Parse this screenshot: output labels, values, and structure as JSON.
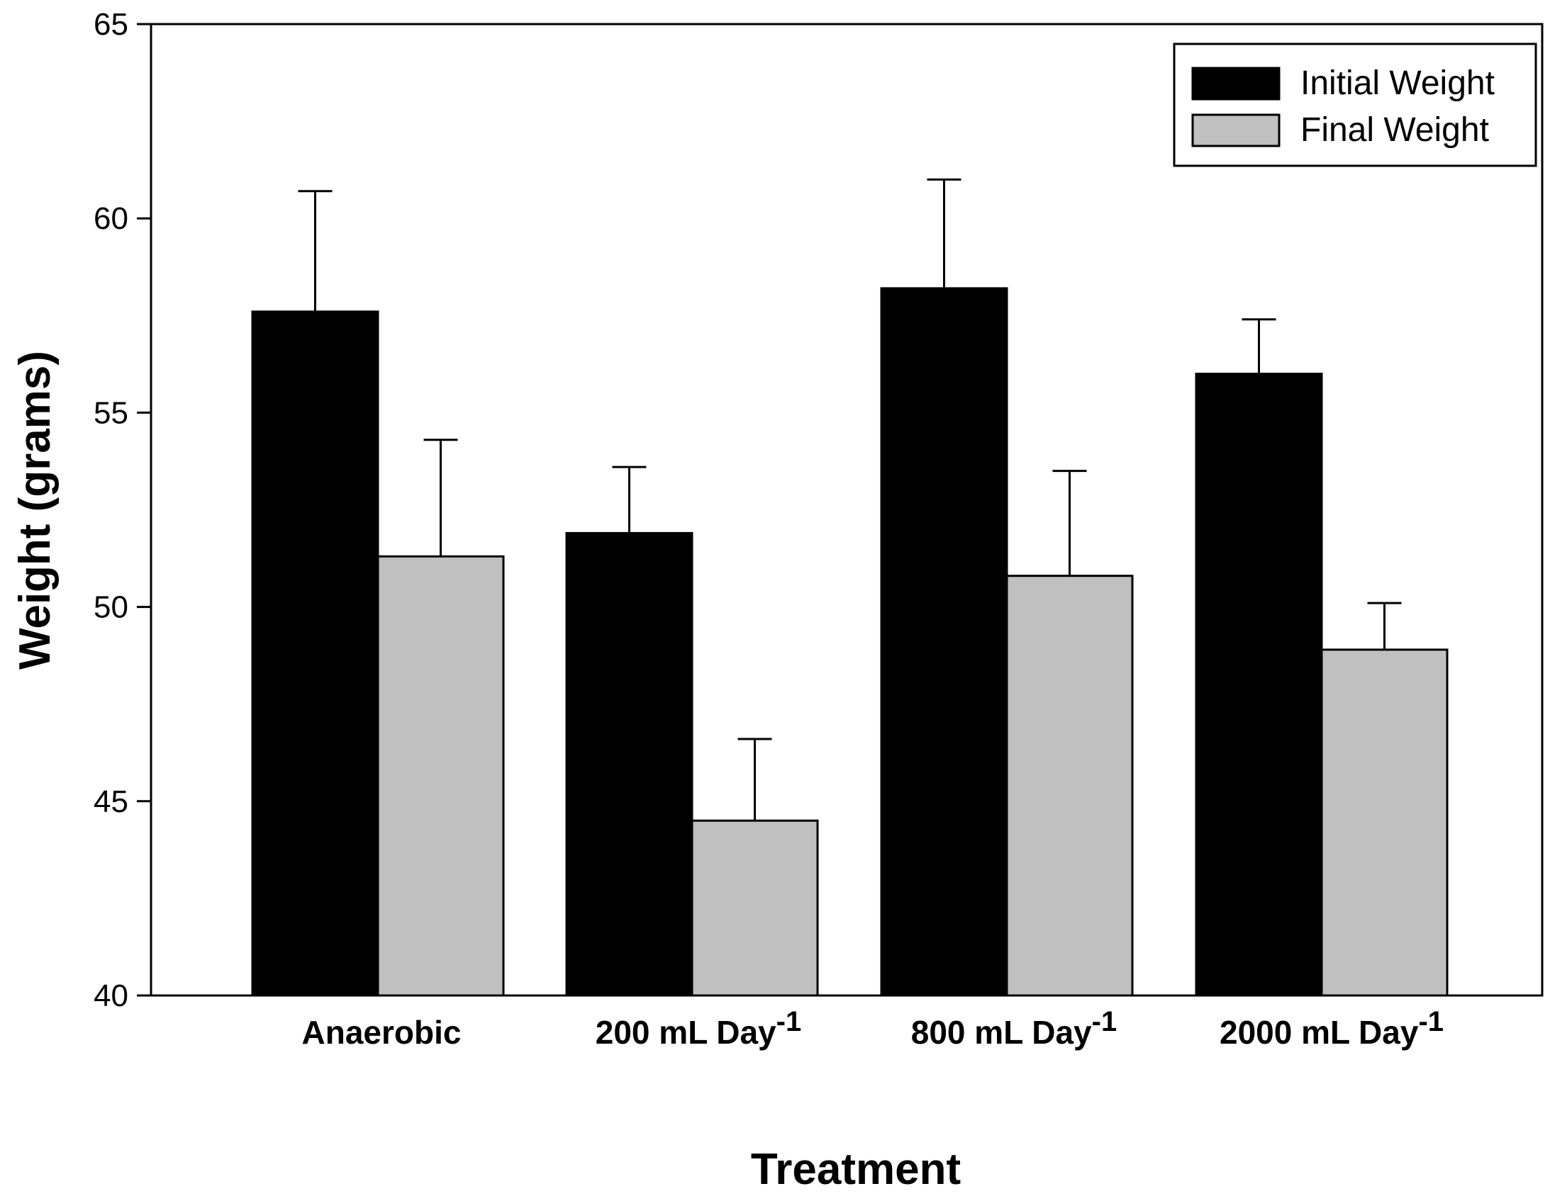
{
  "chart_data": {
    "type": "bar",
    "title": "",
    "xlabel": "Treatment",
    "ylabel": "Weight (grams)",
    "ylim": [
      40,
      65
    ],
    "yticks": [
      40,
      45,
      50,
      55,
      60,
      65
    ],
    "legend_position": "top-right",
    "grid": false,
    "categories": [
      {
        "base": "Anaerobic",
        "sup": ""
      },
      {
        "base": "200 mL Day",
        "sup": "-1"
      },
      {
        "base": "800 mL Day",
        "sup": "-1"
      },
      {
        "base": "2000 mL Day",
        "sup": "-1"
      }
    ],
    "series": [
      {
        "name": "Initial Weight",
        "color": "#000000",
        "values": [
          57.6,
          51.9,
          58.2,
          56.0
        ],
        "errors": [
          3.1,
          1.7,
          2.8,
          1.4
        ]
      },
      {
        "name": "Final Weight",
        "color": "#c0c0c0",
        "values": [
          51.3,
          44.5,
          50.8,
          48.9
        ],
        "errors": [
          3.0,
          2.1,
          2.7,
          1.2
        ]
      }
    ]
  }
}
